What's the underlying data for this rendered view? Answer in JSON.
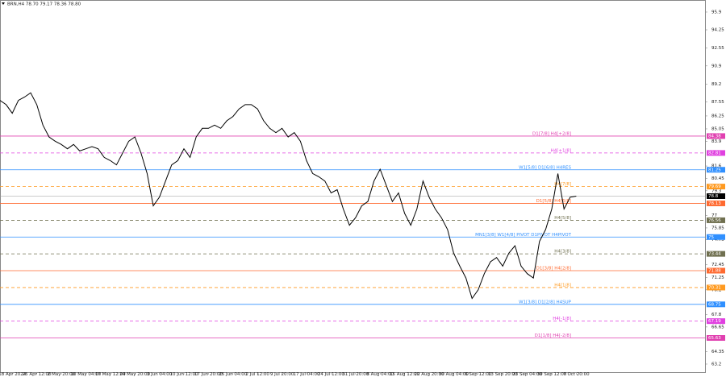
{
  "chart_data": {
    "type": "line",
    "title": "BRN,H4 78.70 79.17 78.36 78.80",
    "categories": [
      null,
      null,
      "18 Apr 2024",
      null,
      null,
      null,
      "25 Apr 12:00",
      null,
      null,
      null,
      "2 May 20:00",
      null,
      null,
      null,
      "10 May 04:00",
      null,
      null,
      null,
      "17 May 12:00",
      null,
      null,
      null,
      "24 May 20:00",
      null,
      null,
      null,
      "3 Jun 04:00",
      null,
      null,
      null,
      "10 Jun 12:00",
      null,
      null,
      null,
      "17 Jun 20:00",
      null,
      null,
      null,
      "25 Jun 04:00",
      null,
      null,
      null,
      "2 Jul 12:00",
      null,
      null,
      null,
      "9 Jul 20:00",
      null,
      null,
      null,
      "17 Jul 04:00",
      null,
      null,
      null,
      "24 Jul 12:00",
      null,
      null,
      null,
      "31 Jul 20:00",
      null,
      null,
      null,
      "8 Aug 04:00",
      null,
      null,
      null,
      "15 Aug 12:00",
      null,
      null,
      null,
      "22 Aug 20:00",
      null,
      null,
      null,
      "30 Aug 04:00",
      null,
      null,
      null,
      "6 Sep 12:00",
      null,
      null,
      null,
      "13 Sep 20:00",
      null,
      null,
      null,
      "23 Sep 04:00",
      null,
      null,
      null,
      "30 Sep 12:00",
      null,
      null,
      null,
      "7 Oct 20:00"
    ],
    "series": [
      {
        "name": "BRN,H4",
        "color": "#000000",
        "values": [
          87.7,
          87.3,
          86.5,
          87.7,
          88.0,
          88.4,
          87.3,
          85.4,
          84.3,
          83.9,
          83.6,
          83.2,
          83.6,
          83.0,
          83.2,
          83.4,
          83.2,
          82.4,
          82.1,
          81.7,
          82.8,
          83.9,
          84.3,
          82.8,
          80.9,
          77.9,
          78.7,
          80.2,
          81.7,
          82.1,
          83.2,
          82.4,
          84.3,
          85.1,
          85.1,
          85.4,
          85.1,
          85.8,
          86.2,
          86.9,
          87.3,
          87.3,
          86.9,
          85.8,
          85.1,
          84.7,
          85.1,
          84.3,
          84.7,
          83.9,
          82.1,
          80.9,
          80.6,
          80.2,
          79.1,
          79.4,
          77.6,
          76.1,
          76.8,
          77.9,
          78.3,
          80.2,
          81.3,
          79.8,
          78.3,
          79.1,
          77.2,
          76.1,
          77.6,
          80.2,
          78.7,
          77.6,
          76.8,
          75.7,
          73.5,
          72.3,
          71.2,
          69.3,
          70.1,
          71.6,
          72.7,
          73.1,
          72.3,
          73.5,
          74.2,
          72.3,
          71.6,
          71.2,
          74.6,
          75.7,
          77.6,
          80.9,
          77.6,
          78.7,
          78.8
        ]
      }
    ],
    "ylim": [
      62.45,
      97.02
    ],
    "yticks": [
      95.9,
      94.25,
      92.55,
      90.9,
      89.2,
      87.55,
      86.25,
      85.05,
      83.9,
      81.6,
      80.45,
      79.3,
      77.0,
      75.85,
      74.75,
      72.45,
      71.25,
      70.1,
      67.8,
      66.65,
      64.35,
      63.2
    ],
    "current_price": 78.8,
    "levels": [
      {
        "label": "D1[7/8] H4[+2/8]",
        "price": 84.38,
        "color": "#e040b0",
        "dashed": false
      },
      {
        "label": "H4[+1/8]",
        "price": 82.81,
        "color": "#e040e0",
        "dashed": true
      },
      {
        "label": "W1[5/8] D1[6/8] H4RES",
        "price": 81.25,
        "color": "#3090ff",
        "dashed": false
      },
      {
        "label": "H4[7/8]",
        "price": 79.69,
        "color": "#ff9a20",
        "dashed": true
      },
      {
        "label": "D1[5/8] H4[6/8]",
        "price": 78.13,
        "color": "#ff6a30",
        "dashed": false
      },
      {
        "label": "H4[5/8]",
        "price": 76.56,
        "color": "#707050",
        "dashed": true
      },
      {
        "label": "MN1[3/8] W1[4/8] PIVOT D1PIVOT H4PIVOT",
        "price": 75.0,
        "color": "#3090ff",
        "dashed": false
      },
      {
        "label": "H4[3/8]",
        "price": 73.44,
        "color": "#707050",
        "dashed": true
      },
      {
        "label": "D1[3/8] H4[2/8]",
        "price": 71.88,
        "color": "#ff6a30",
        "dashed": false
      },
      {
        "label": "H4[1/8]",
        "price": 70.31,
        "color": "#ff9a20",
        "dashed": true
      },
      {
        "label": "W1[3/8] D1[2/8] H4SUP",
        "price": 68.75,
        "color": "#3090ff",
        "dashed": false
      },
      {
        "label": "H4[-1/8]",
        "price": 67.19,
        "color": "#e040e0",
        "dashed": true
      },
      {
        "label": "D1[1/8] H4[-2/8]",
        "price": 65.63,
        "color": "#e040b0",
        "dashed": false
      }
    ]
  }
}
